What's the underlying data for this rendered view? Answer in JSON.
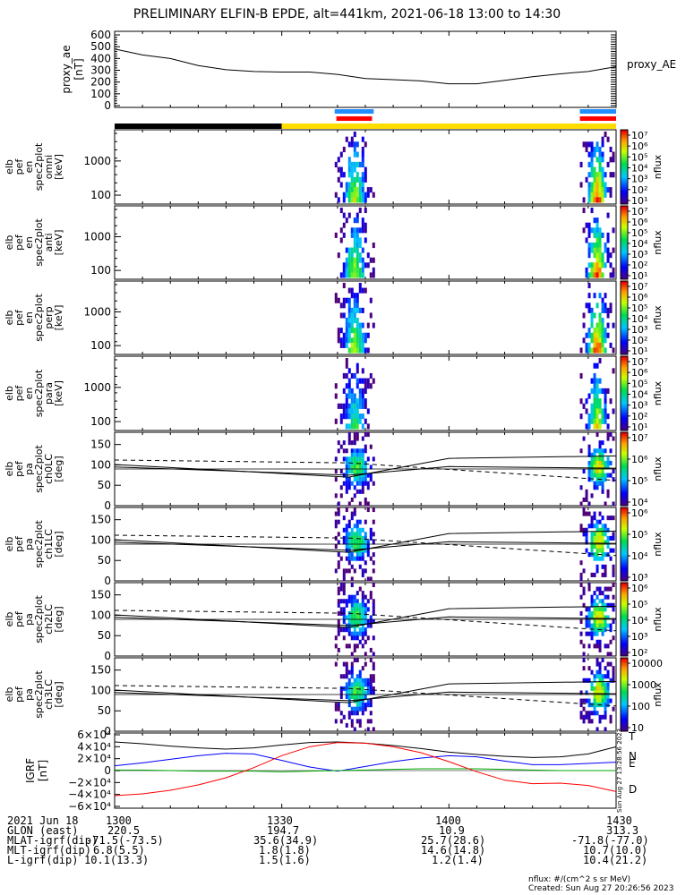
{
  "title": "PRELIMINARY ELFIN-B EPDE, alt=441km, 2021-06-18 13:00 to 14:30",
  "colors": {
    "black_bar": "#000000",
    "yellow_bar": "#ffdd00",
    "blue_marker": "#1f8fff",
    "red_marker": "#ff0000",
    "grf_t": "#000000",
    "grf_n": "#0000ff",
    "grf_e": "#00aa00",
    "grf_d": "#ff0000"
  },
  "chart_data": [
    {
      "id": "proxy_ae",
      "type": "line",
      "ylabel": [
        "proxy_ae",
        "[nT]"
      ],
      "side_label": "proxy_AE",
      "ylim": [
        0,
        600
      ],
      "yticks": [
        "0",
        "100",
        "200",
        "300",
        "400",
        "500",
        "600"
      ],
      "ytick_values": [
        0,
        100,
        200,
        300,
        400,
        500,
        600
      ],
      "x_min": [
        0,
        5,
        10,
        15,
        20,
        25,
        30,
        35,
        40,
        45,
        50,
        55,
        60,
        65,
        70,
        75,
        80,
        85,
        90
      ],
      "values": [
        480,
        430,
        400,
        340,
        305,
        290,
        285,
        285,
        265,
        230,
        220,
        210,
        185,
        185,
        215,
        245,
        270,
        290,
        330
      ]
    },
    {
      "id": "spec_omni",
      "type": "heatmap",
      "ylabel": [
        "elb",
        "pef",
        "en",
        "spec2plot",
        "omni",
        "[keV]"
      ],
      "yticks": [
        "1000",
        "100"
      ],
      "colorbar": {
        "label": "nflux",
        "ticks": [
          "10⁷",
          "10⁶",
          "10⁵",
          "10⁴",
          "10³",
          "10²",
          "10¹"
        ]
      }
    },
    {
      "id": "spec_anti",
      "type": "heatmap",
      "ylabel": [
        "elb",
        "pef",
        "en",
        "spec2plot",
        "anti",
        "[keV]"
      ],
      "yticks": [
        "1000",
        "100"
      ],
      "colorbar": {
        "label": "nflux",
        "ticks": [
          "10⁷",
          "10⁶",
          "10⁵",
          "10⁴",
          "10³",
          "10²",
          "10¹"
        ]
      }
    },
    {
      "id": "spec_perp",
      "type": "heatmap",
      "ylabel": [
        "elb",
        "pef",
        "en",
        "spec2plot",
        "perp",
        "[keV]"
      ],
      "yticks": [
        "1000",
        "100"
      ],
      "colorbar": {
        "label": "nflux",
        "ticks": [
          "10⁷",
          "10⁶",
          "10⁵",
          "10⁴",
          "10³",
          "10²",
          "10¹"
        ]
      }
    },
    {
      "id": "spec_para",
      "type": "heatmap",
      "ylabel": [
        "elb",
        "pef",
        "en",
        "spec2plot",
        "para",
        "[keV]"
      ],
      "yticks": [
        "1000",
        "100"
      ],
      "colorbar": {
        "label": "nflux",
        "ticks": [
          "10⁷",
          "10⁶",
          "10⁵",
          "10⁴",
          "10³",
          "10²",
          "10¹"
        ]
      }
    },
    {
      "id": "pa_ch0",
      "type": "heatmap",
      "ylabel": [
        "elb",
        "pef",
        "pa",
        "spec2plot",
        "ch0LC",
        "[deg]"
      ],
      "yticks": [
        "150",
        "100",
        "50",
        "0"
      ],
      "colorbar": {
        "label": "nflux",
        "ticks": [
          "10⁷",
          "10⁶",
          "10⁵",
          "10⁴"
        ]
      }
    },
    {
      "id": "pa_ch1",
      "type": "heatmap",
      "ylabel": [
        "elb",
        "pef",
        "pa",
        "spec2plot",
        "ch1LC",
        "[deg]"
      ],
      "yticks": [
        "150",
        "100",
        "50",
        "0"
      ],
      "colorbar": {
        "label": "nflux",
        "ticks": [
          "10⁶",
          "10⁵",
          "10⁴",
          "10³"
        ]
      }
    },
    {
      "id": "pa_ch2",
      "type": "heatmap",
      "ylabel": [
        "elb",
        "pef",
        "pa",
        "spec2plot",
        "ch2LC",
        "[deg]"
      ],
      "yticks": [
        "150",
        "100",
        "50",
        "0"
      ],
      "colorbar": {
        "label": "nflux",
        "ticks": [
          "10⁶",
          "10⁵",
          "10⁴",
          "10³",
          "10²"
        ]
      }
    },
    {
      "id": "pa_ch3",
      "type": "heatmap",
      "ylabel": [
        "elb",
        "pef",
        "pa",
        "spec2plot",
        "ch3LC",
        "[deg]"
      ],
      "yticks": [
        "150",
        "100",
        "50",
        "0"
      ],
      "colorbar": {
        "label": "nflux",
        "ticks": [
          "10000",
          "1000",
          "100",
          "10"
        ]
      }
    },
    {
      "id": "igrf",
      "type": "line",
      "ylabel": [
        "IGRF",
        "[nT]"
      ],
      "ylim": [
        -60000,
        60000
      ],
      "yticks": [
        "6×10⁴",
        "4×10⁴",
        "2×10⁴",
        "0",
        "−2×10⁴",
        "−4×10⁴",
        "−6×10⁴"
      ],
      "ytick_values": [
        60000,
        40000,
        20000,
        0,
        -20000,
        -40000,
        -60000
      ],
      "x_min": [
        0,
        5,
        10,
        15,
        20,
        25,
        30,
        35,
        40,
        45,
        50,
        55,
        60,
        65,
        70,
        75,
        80,
        85,
        90
      ],
      "series": [
        {
          "name": "T",
          "values": [
            48000,
            45000,
            41000,
            38000,
            36000,
            38000,
            43000,
            47000,
            48000,
            46000,
            42000,
            37000,
            31000,
            27000,
            24000,
            22000,
            23000,
            28000,
            40000
          ]
        },
        {
          "name": "N",
          "values": [
            8000,
            13000,
            19000,
            25000,
            29000,
            28000,
            17000,
            6000,
            -1000,
            7000,
            15000,
            21000,
            25000,
            23000,
            16000,
            10000,
            10000,
            12000,
            14000
          ]
        },
        {
          "name": "E",
          "values": [
            1000,
            1000,
            0,
            -1000,
            -1000,
            -1000,
            -2000,
            -1000,
            0,
            1000,
            2000,
            3000,
            3000,
            3000,
            2000,
            1000,
            0,
            0,
            0
          ]
        },
        {
          "name": "D",
          "values": [
            -42000,
            -39000,
            -33000,
            -24000,
            -12000,
            5000,
            25000,
            40000,
            47000,
            46000,
            40000,
            30000,
            15000,
            -2000,
            -16000,
            -22000,
            -21000,
            -25000,
            -35000
          ]
        }
      ],
      "side_labels": [
        "T",
        "N",
        "E",
        "D"
      ]
    }
  ],
  "x_axis": {
    "ticks": [
      "1300",
      "1330",
      "1400",
      "1430"
    ],
    "tick_minutes": [
      0,
      30,
      60,
      90
    ]
  },
  "orbit_table": {
    "labels": [
      "2021 Jun 18",
      "GLON (east)",
      "MLAT-igrf(dip)",
      "MLT-igrf(dip)",
      "L-igrf(dip)"
    ],
    "columns": [
      [
        "1300",
        "220.5",
        "-71.5(-73.5)",
        "6.8(5.5)",
        "10.1(13.3)"
      ],
      [
        "1330",
        "194.7",
        "35.6(34.9)",
        "1.8(1.8)",
        "1.5(1.6)"
      ],
      [
        "1400",
        "10.9",
        "25.7(28.6)",
        "14.6(14.8)",
        "1.2(1.4)"
      ],
      [
        "1430",
        "313.3",
        "-71.8(-77.0)",
        "10.7(10.0)",
        "10.4(21.2)"
      ]
    ]
  },
  "footer": {
    "units": "nflux: #/(cm^2 s sr MeV)",
    "created": "Created: Sun Aug 27 20:26:56 2023",
    "stamp": "Sun Aug 27 13:28:56 2023"
  }
}
